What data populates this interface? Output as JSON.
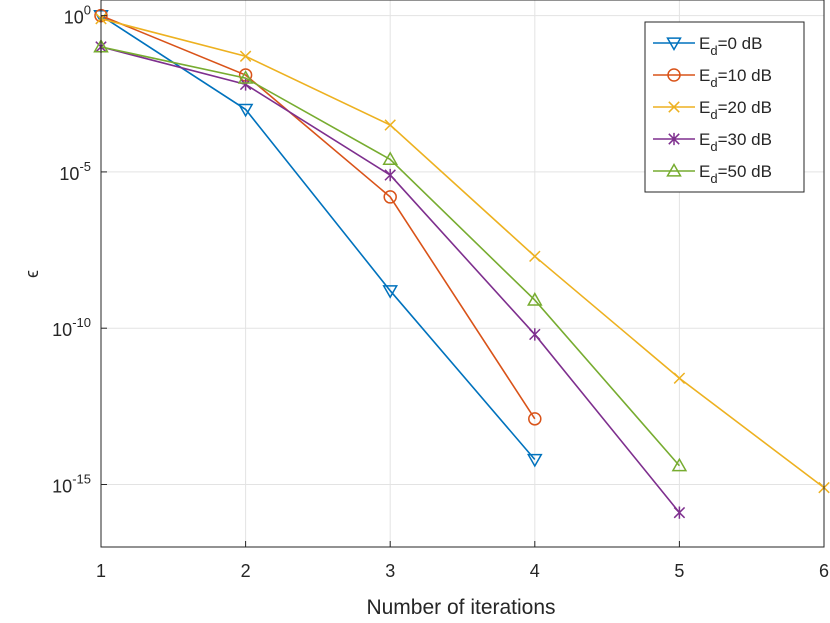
{
  "chart_data": {
    "type": "line",
    "title": "",
    "xlabel": "Number of iterations",
    "ylabel": "ϵ",
    "yscale": "log",
    "xlim": [
      1,
      6
    ],
    "ylim_exp": [
      -17,
      0.5
    ],
    "grid": true,
    "legend_position": "top-right",
    "x_ticks": [
      1,
      2,
      3,
      4,
      5,
      6
    ],
    "y_ticks": [
      {
        "base": "10",
        "exp": "0",
        "log": 0
      },
      {
        "base": "10",
        "exp": "-5",
        "log": -5
      },
      {
        "base": "10",
        "exp": "-10",
        "log": -10
      },
      {
        "base": "10",
        "exp": "-15",
        "log": -15
      }
    ],
    "series": [
      {
        "name": "E_d=0 dB",
        "label_main": "E",
        "label_sub": "d",
        "label_rest": "=0 dB",
        "color": "#0072BD",
        "marker": "triangle-down",
        "x": [
          1,
          2,
          3,
          4
        ],
        "log_y": [
          0,
          -3,
          -8.8,
          -14.2
        ]
      },
      {
        "name": "E_d=10 dB",
        "label_main": "E",
        "label_sub": "d",
        "label_rest": "=10 dB",
        "color": "#D95319",
        "marker": "circle",
        "x": [
          1,
          2,
          3,
          4
        ],
        "log_y": [
          0,
          -1.9,
          -5.8,
          -12.9
        ]
      },
      {
        "name": "E_d=20 dB",
        "label_main": "E",
        "label_sub": "d",
        "label_rest": "=20 dB",
        "color": "#EDB120",
        "marker": "x",
        "x": [
          1,
          2,
          3,
          4,
          5,
          6
        ],
        "log_y": [
          -0.1,
          -1.3,
          -3.5,
          -7.7,
          -11.6,
          -15.1
        ]
      },
      {
        "name": "E_d=30 dB",
        "label_main": "E",
        "label_sub": "d",
        "label_rest": "=30 dB",
        "color": "#7E2F8E",
        "marker": "asterisk",
        "x": [
          1,
          2,
          3,
          4,
          5
        ],
        "log_y": [
          -1,
          -2.2,
          -5.1,
          -10.2,
          -15.9
        ]
      },
      {
        "name": "E_d=50 dB",
        "label_main": "E",
        "label_sub": "d",
        "label_rest": "=50 dB",
        "color": "#77AC30",
        "marker": "triangle-up",
        "x": [
          1,
          2,
          3,
          4,
          5
        ],
        "log_y": [
          -1,
          -2,
          -4.6,
          -9.1,
          -14.4
        ]
      }
    ]
  }
}
